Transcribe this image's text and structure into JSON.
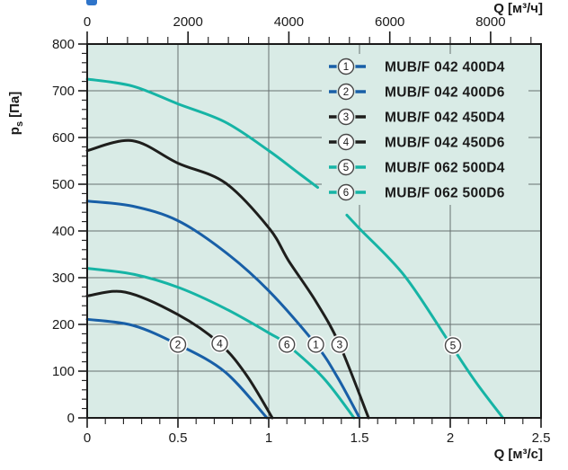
{
  "chart_data": {
    "type": "line",
    "axes": {
      "top": {
        "label": "Q [м³/ч]",
        "range": [
          0,
          9000
        ],
        "unit_ratio": 3600,
        "major_ticks": [
          0,
          2000,
          4000,
          6000,
          8000
        ],
        "tick_labels": [
          "0",
          "2000",
          "4000",
          "6000",
          "8000"
        ],
        "minor_step": 400
      },
      "bottom": {
        "label": "Q [м³/с]",
        "range": [
          0,
          2.5
        ],
        "major_ticks": [
          0,
          0.5,
          1,
          1.5,
          2,
          2.5
        ],
        "tick_labels": [
          "0",
          "0.5",
          "1",
          "1.5",
          "2",
          "2.5"
        ],
        "minor_step": 0.1
      },
      "left": {
        "label_symbol": "p",
        "label_sub": "s",
        "label_unit": "[Па]",
        "range": [
          0,
          800
        ],
        "major_step": 100,
        "minor_step": 20,
        "tick_labels": [
          "0",
          "100",
          "200",
          "300",
          "400",
          "500",
          "600",
          "700",
          "800"
        ]
      }
    },
    "grid": {
      "on": true,
      "x_step": 0.5,
      "y_step": 100
    },
    "legend_position": "top-right-inside",
    "series": [
      {
        "id": "1",
        "name": "MUB/F 042 400D4",
        "color": "blue",
        "points": [
          [
            0,
            464
          ],
          [
            0.25,
            453
          ],
          [
            0.5,
            422
          ],
          [
            0.76,
            355
          ],
          [
            1.0,
            272
          ],
          [
            1.26,
            157
          ],
          [
            1.38,
            86
          ],
          [
            1.5,
            0
          ]
        ],
        "badge_at": [
          1.26,
          157
        ]
      },
      {
        "id": "2",
        "name": "MUB/F 042 400D6",
        "color": "blue",
        "points": [
          [
            0,
            211
          ],
          [
            0.25,
            198
          ],
          [
            0.5,
            157
          ],
          [
            0.76,
            98
          ],
          [
            0.99,
            0
          ]
        ],
        "badge_at": [
          0.5,
          157
        ]
      },
      {
        "id": "3",
        "name": "MUB/F 042 450D4",
        "color": "black",
        "points": [
          [
            0,
            572
          ],
          [
            0.25,
            593
          ],
          [
            0.5,
            545
          ],
          [
            0.76,
            503
          ],
          [
            1.0,
            407
          ],
          [
            1.11,
            336
          ],
          [
            1.26,
            249
          ],
          [
            1.39,
            157
          ],
          [
            1.55,
            0
          ]
        ],
        "badge_at": [
          1.39,
          157
        ]
      },
      {
        "id": "4",
        "name": "MUB/F 042 450D6",
        "color": "black",
        "points": [
          [
            0,
            261
          ],
          [
            0.21,
            269
          ],
          [
            0.5,
            221
          ],
          [
            0.73,
            159
          ],
          [
            0.88,
            90
          ],
          [
            1.02,
            0
          ]
        ],
        "badge_at": [
          0.73,
          159
        ]
      },
      {
        "id": "5",
        "name": "MUB/F 062 500D4",
        "color": "teal",
        "points": [
          [
            0,
            725
          ],
          [
            0.25,
            710
          ],
          [
            0.5,
            672
          ],
          [
            0.76,
            633
          ],
          [
            1.0,
            572
          ],
          [
            1.15,
            528
          ],
          [
            1.27,
            493
          ]
        ],
        "points2": [
          [
            1.43,
            434
          ],
          [
            1.5,
            405
          ],
          [
            1.75,
            303
          ],
          [
            2.0,
            158
          ],
          [
            2.14,
            77
          ],
          [
            2.29,
            0
          ]
        ],
        "badge_at": [
          2.015,
          155
        ]
      },
      {
        "id": "6",
        "name": "MUB/F 062 500D6",
        "color": "teal",
        "points": [
          [
            0,
            320
          ],
          [
            0.26,
            307
          ],
          [
            0.51,
            278
          ],
          [
            0.76,
            234
          ],
          [
            1.0,
            182
          ],
          [
            1.1,
            157
          ],
          [
            1.3,
            86
          ],
          [
            1.47,
            0
          ]
        ],
        "badge_at": [
          1.1,
          157
        ]
      }
    ],
    "colors": {
      "plot_bg": "#d9ebe6",
      "grid": "#687070",
      "border": "#1a1a1a",
      "text": "#1a1a1a",
      "blue": "#185fa7",
      "black": "#1e1e1c",
      "teal": "#16b4a5",
      "circle_stroke": "#474747",
      "artifact_blue": "#2e74c9"
    }
  }
}
